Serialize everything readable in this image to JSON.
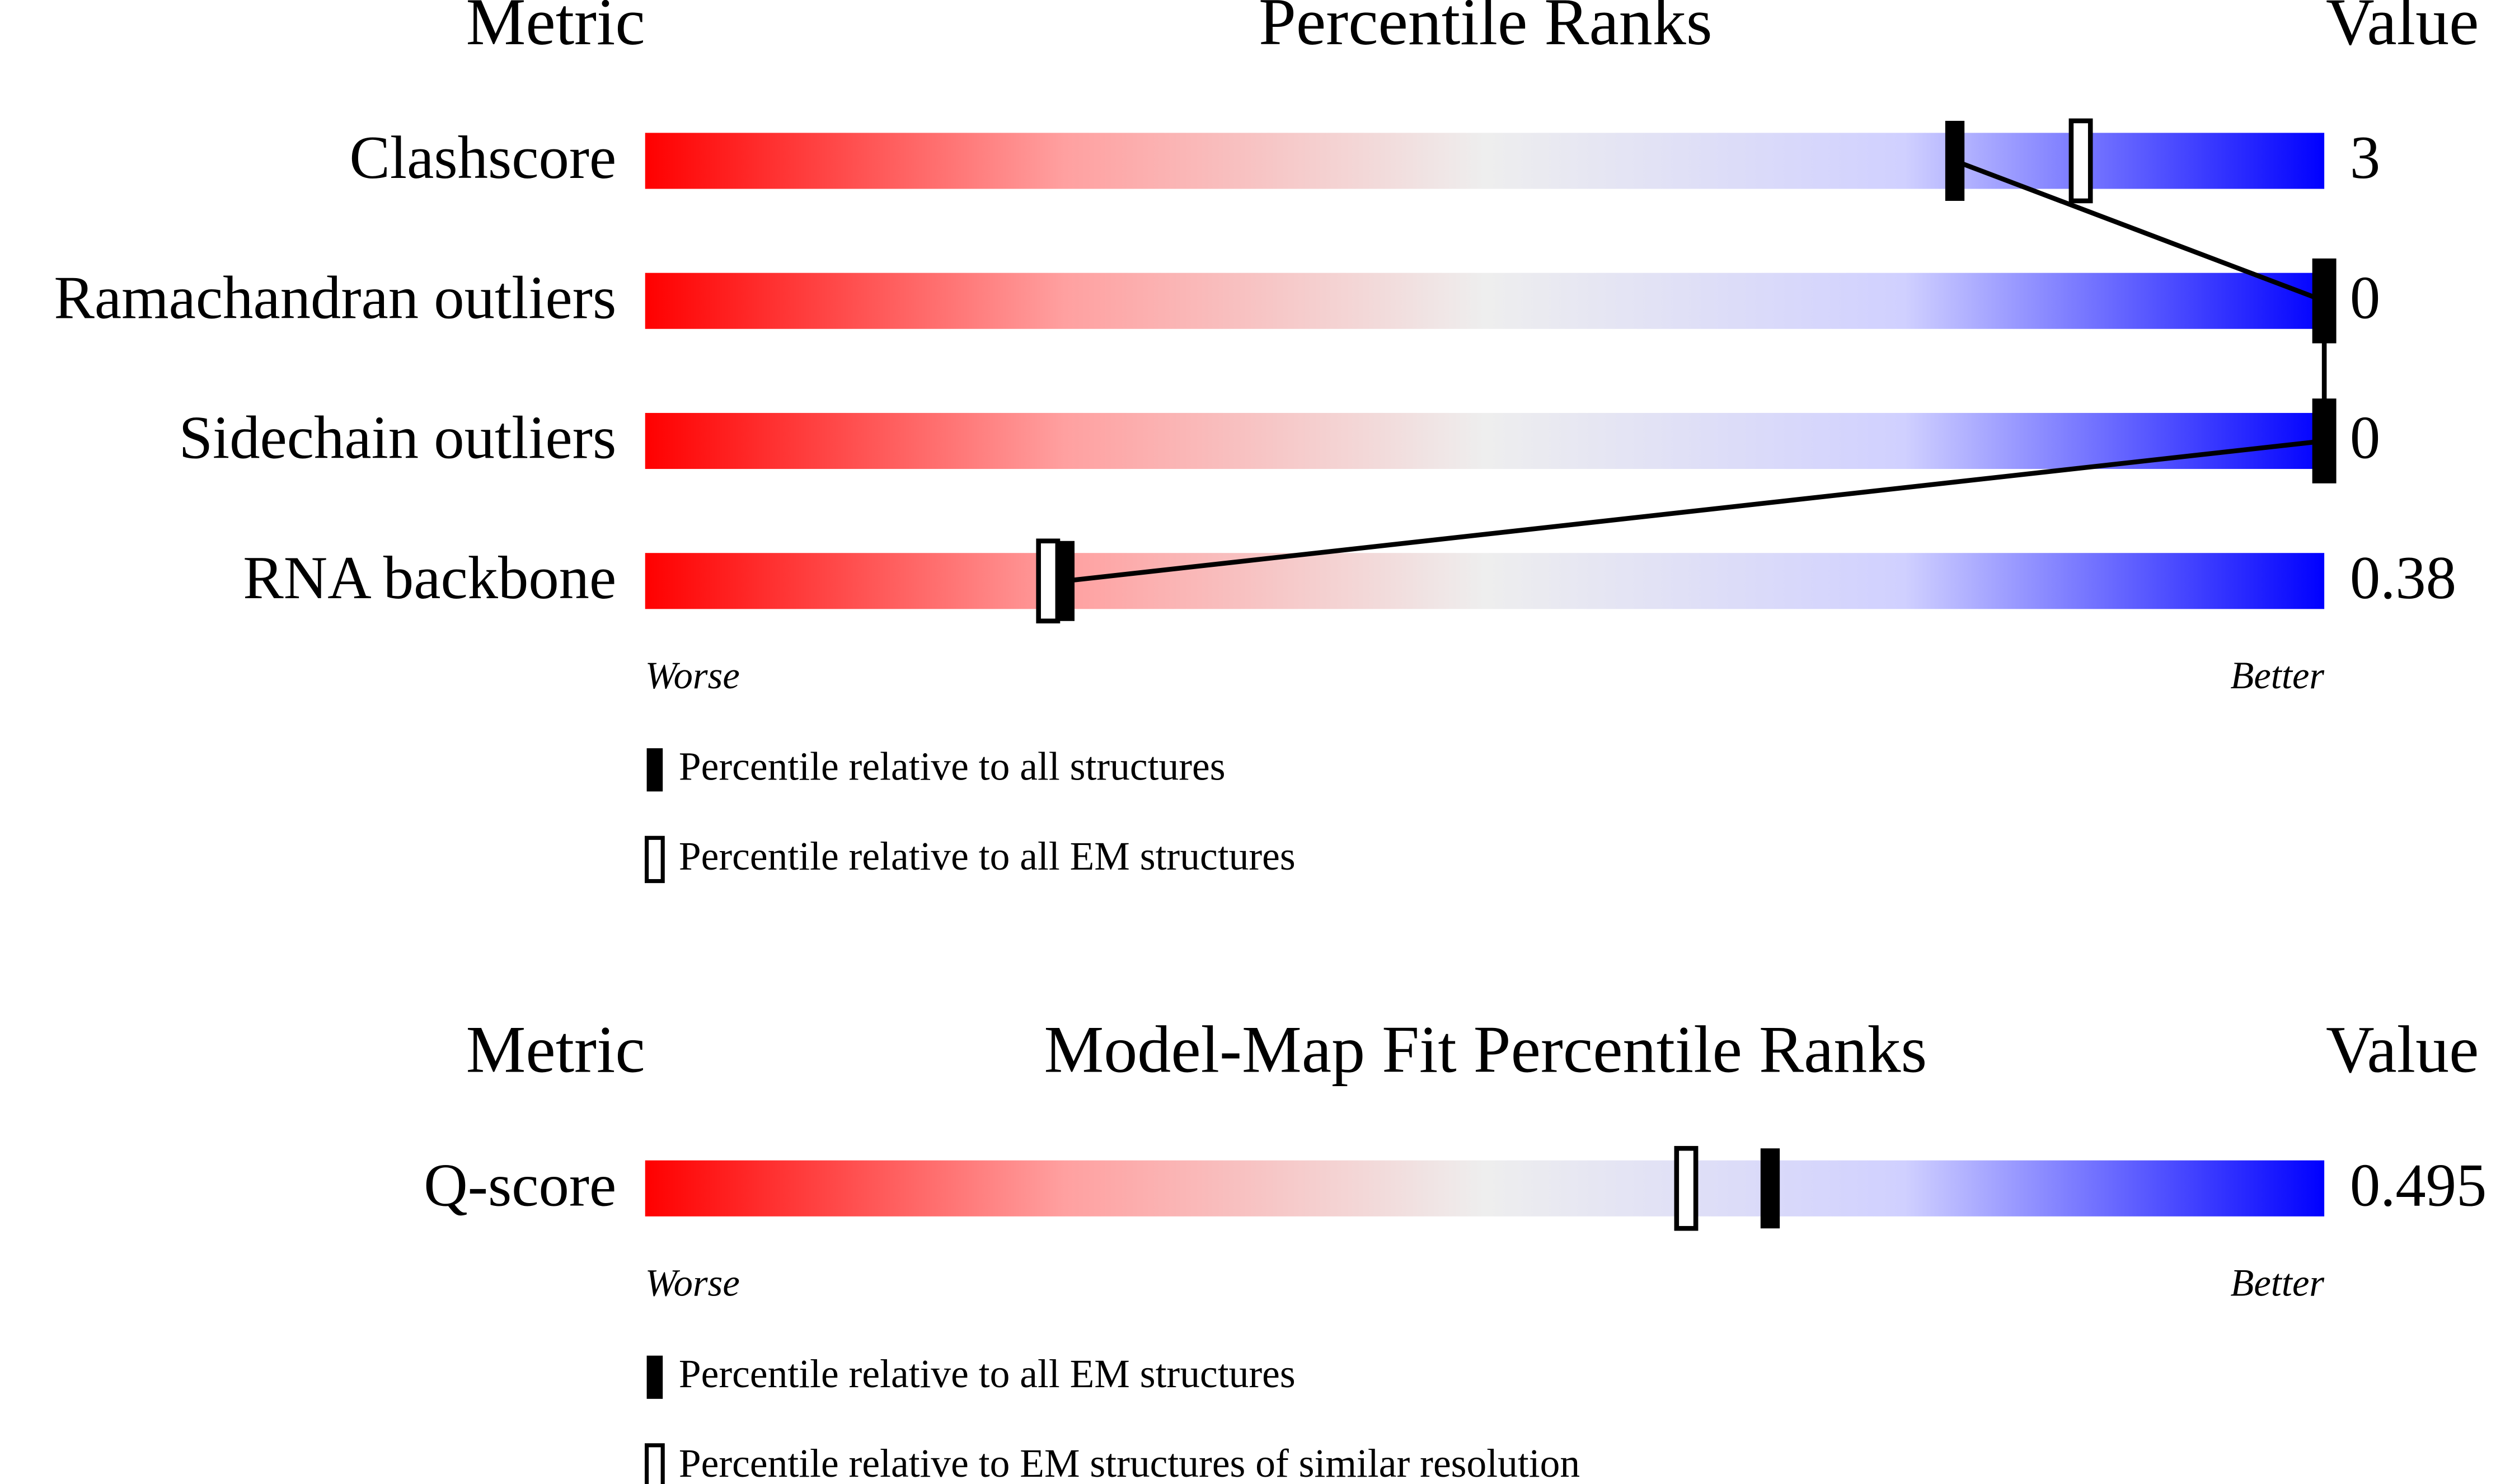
{
  "chart_data": [
    {
      "type": "percentile",
      "title": "Percentile Ranks",
      "metric_header": "Metric",
      "value_header": "Value",
      "categories": [
        "Clashscore",
        "Ramachandran outliers",
        "Sidechain outliers",
        "RNA backbone"
      ],
      "metric_values": [
        3,
        0,
        0,
        0.38
      ],
      "xlim": [
        0,
        100
      ],
      "worse_label": "Worse",
      "better_label": "Better",
      "series": [
        {
          "name": "Percentile relative to all structures",
          "color": "#000000",
          "filled": true,
          "values": [
            78,
            100,
            100,
            25
          ]
        },
        {
          "name": "Percentile relative to all EM structures",
          "color": "#000000",
          "filled": false,
          "values": [
            85.5,
            100,
            100,
            24
          ]
        }
      ]
    },
    {
      "type": "percentile",
      "title": "Model-Map Fit Percentile Ranks",
      "metric_header": "Metric",
      "value_header": "Value",
      "categories": [
        "Q-score"
      ],
      "metric_values": [
        0.495
      ],
      "xlim": [
        0,
        100
      ],
      "worse_label": "Worse",
      "better_label": "Better",
      "series": [
        {
          "name": "Percentile relative to all EM structures",
          "color": "#000000",
          "filled": true,
          "values": [
            67
          ]
        },
        {
          "name": "Percentile relative to EM structures of similar resolution",
          "color": "#000000",
          "filled": false,
          "values": [
            62
          ]
        }
      ]
    }
  ]
}
